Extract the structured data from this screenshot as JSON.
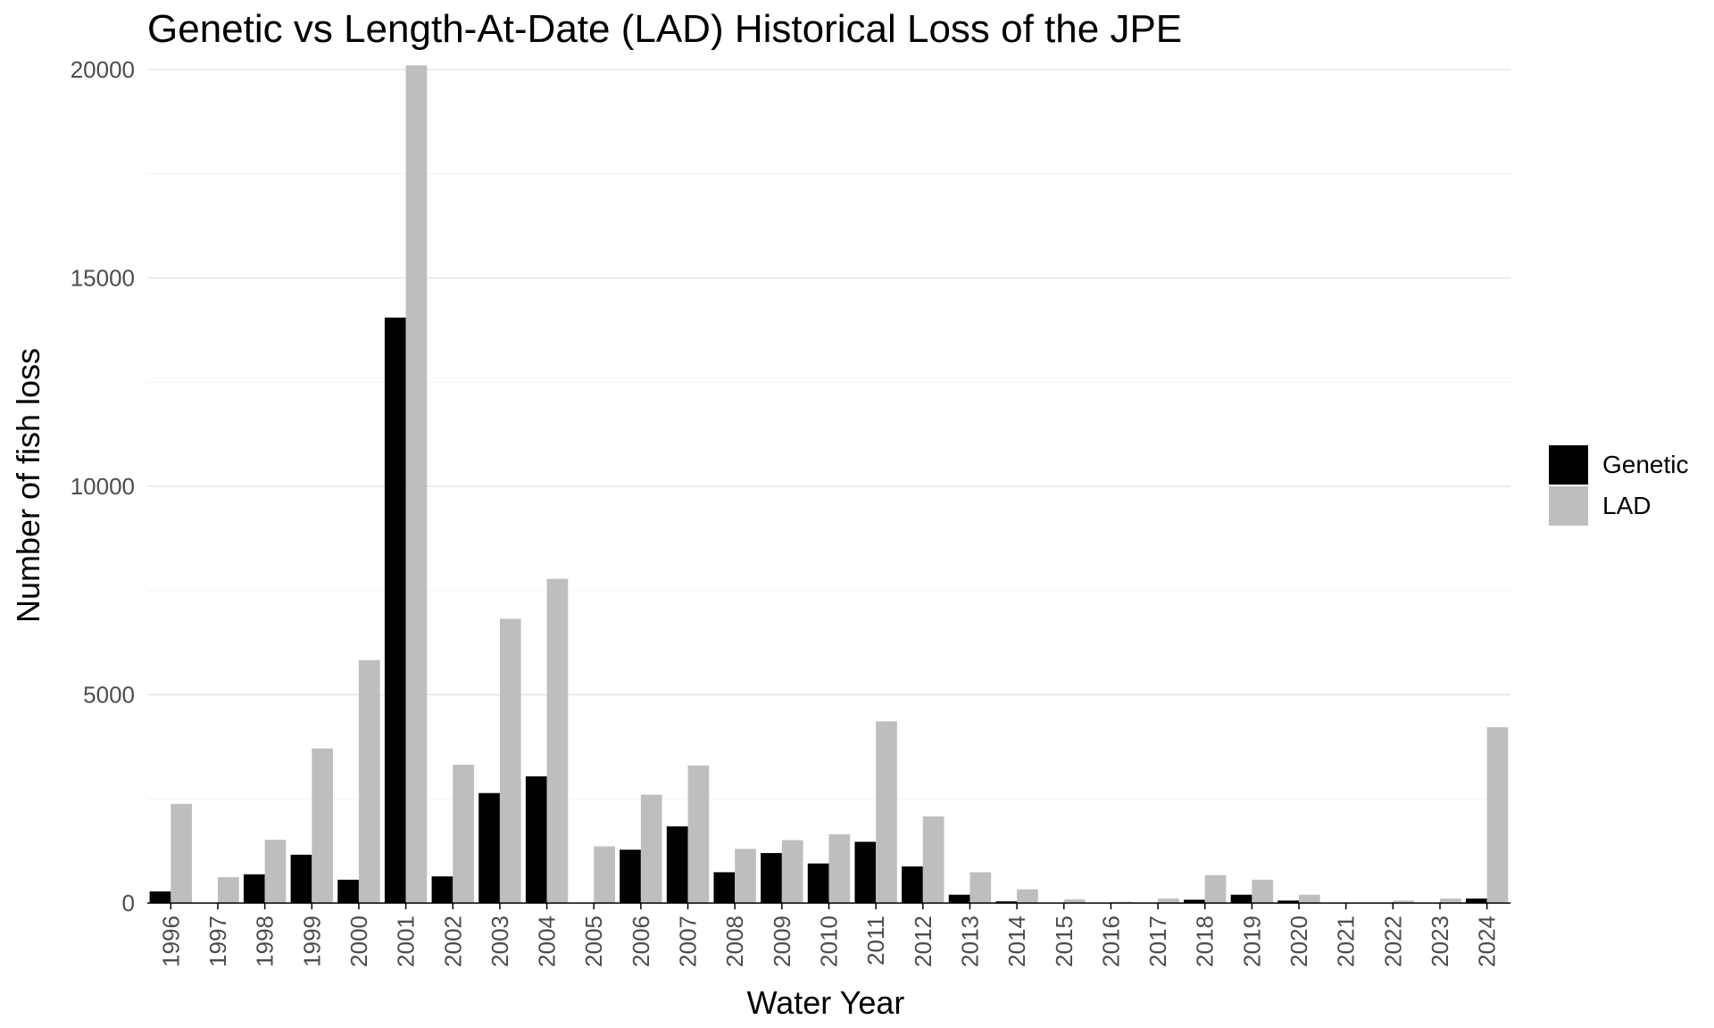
{
  "chart_data": {
    "type": "bar",
    "title": "Genetic vs Length-At-Date (LAD) Historical Loss of the JPE",
    "xlabel": "Water Year",
    "ylabel": "Number of fish loss",
    "ylim": [
      0,
      20000
    ],
    "yticks": [
      0,
      5000,
      10000,
      15000,
      20000
    ],
    "grid": true,
    "legend_position": "right",
    "categories": [
      "1996",
      "1997",
      "1998",
      "1999",
      "2000",
      "2001",
      "2002",
      "2003",
      "2004",
      "2005",
      "2006",
      "2007",
      "2008",
      "2009",
      "2010",
      "2011",
      "2012",
      "2013",
      "2014",
      "2015",
      "2016",
      "2017",
      "2018",
      "2019",
      "2020",
      "2021",
      "2022",
      "2023",
      "2024"
    ],
    "series": [
      {
        "name": "Genetic",
        "color": "#000000",
        "values": [
          280,
          0,
          690,
          1160,
          560,
          14050,
          640,
          2640,
          3040,
          0,
          1280,
          1840,
          740,
          1200,
          950,
          1470,
          880,
          200,
          40,
          0,
          0,
          0,
          80,
          200,
          60,
          0,
          0,
          0,
          110
        ]
      },
      {
        "name": "LAD",
        "color": "#bebebe",
        "values": [
          2380,
          620,
          1520,
          3710,
          5830,
          20100,
          3320,
          6820,
          7780,
          1360,
          2600,
          3300,
          1300,
          1510,
          1650,
          4360,
          2080,
          740,
          330,
          90,
          30,
          110,
          670,
          560,
          200,
          10,
          60,
          110,
          4220
        ]
      }
    ]
  }
}
